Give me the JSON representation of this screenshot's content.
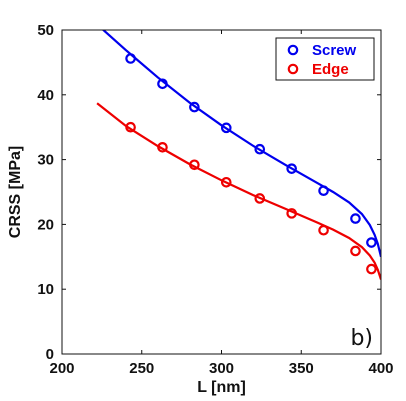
{
  "chart_data": {
    "type": "scatter",
    "xlabel": "L [nm]",
    "ylabel": "CRSS [MPa]",
    "xlim": [
      200,
      400
    ],
    "ylim": [
      0,
      50
    ],
    "xticks": [
      "200",
      "250",
      "300",
      "350",
      "400"
    ],
    "yticks": [
      "0",
      "10",
      "20",
      "30",
      "40",
      "50"
    ],
    "panel_label": "b)",
    "legend": {
      "placement": "top-right"
    },
    "series": [
      {
        "name": "Screw",
        "color": "#0000ee",
        "points": [
          [
            243,
            45.6
          ],
          [
            263,
            41.7
          ],
          [
            283,
            38.1
          ],
          [
            303,
            34.9
          ],
          [
            324,
            31.6
          ],
          [
            344,
            28.6
          ],
          [
            364,
            25.2
          ],
          [
            384,
            20.9
          ],
          [
            394,
            17.2
          ]
        ],
        "fit": [
          [
            225,
            50.2
          ],
          [
            240,
            46.9
          ],
          [
            260,
            42.7
          ],
          [
            280,
            38.8
          ],
          [
            300,
            35.3
          ],
          [
            320,
            32.1
          ],
          [
            340,
            29.2
          ],
          [
            360,
            26.4
          ],
          [
            370,
            25.0
          ],
          [
            380,
            23.4
          ],
          [
            388,
            21.6
          ],
          [
            393,
            19.9
          ],
          [
            396,
            18.4
          ],
          [
            398,
            17.0
          ],
          [
            400,
            15.0
          ]
        ]
      },
      {
        "name": "Edge",
        "color": "#ee0000",
        "points": [
          [
            243,
            35.0
          ],
          [
            263,
            31.9
          ],
          [
            283,
            29.2
          ],
          [
            303,
            26.5
          ],
          [
            324,
            24.0
          ],
          [
            344,
            21.7
          ],
          [
            364,
            19.1
          ],
          [
            384,
            15.9
          ],
          [
            394,
            13.1
          ]
        ],
        "fit": [
          [
            222,
            38.7
          ],
          [
            240,
            35.2
          ],
          [
            260,
            32.1
          ],
          [
            280,
            29.3
          ],
          [
            300,
            26.8
          ],
          [
            320,
            24.5
          ],
          [
            340,
            22.4
          ],
          [
            360,
            20.3
          ],
          [
            370,
            19.2
          ],
          [
            380,
            17.9
          ],
          [
            388,
            16.5
          ],
          [
            393,
            15.2
          ],
          [
            396,
            14.1
          ],
          [
            398,
            13.0
          ],
          [
            400,
            11.5
          ]
        ]
      }
    ]
  }
}
